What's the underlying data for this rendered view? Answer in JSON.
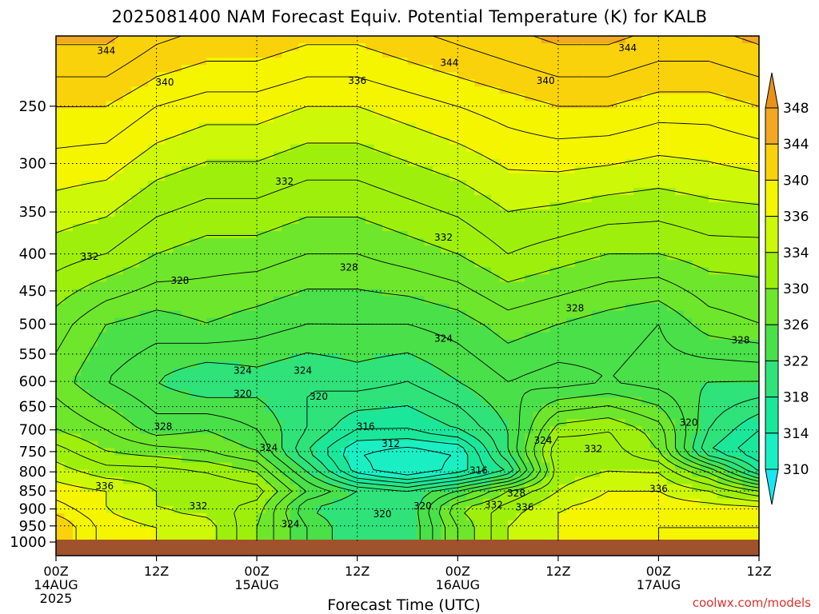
{
  "title": "2025081400 NAM Forecast Equiv. Potential Temperature (K) for KALB",
  "credit": "coolwx.com/models",
  "colors": {
    "ground": "#a0522d",
    "contour": "#000000",
    "grid": "#000000"
  },
  "chart_data": {
    "type": "heatmap",
    "title": "2025081400 NAM Forecast Equiv. Potential Temperature (K) for KALB",
    "xlabel": "Forecast Time (UTC)",
    "ylabel": "",
    "x_ticks": [
      {
        "hour": 0,
        "label": "00Z",
        "sub": "14AUG",
        "sub2": "2025"
      },
      {
        "hour": 12,
        "label": "12Z"
      },
      {
        "hour": 24,
        "label": "00Z",
        "sub": "15AUG"
      },
      {
        "hour": 36,
        "label": "12Z"
      },
      {
        "hour": 48,
        "label": "00Z",
        "sub": "16AUG"
      },
      {
        "hour": 60,
        "label": "12Z"
      },
      {
        "hour": 72,
        "label": "00Z",
        "sub": "17AUG"
      },
      {
        "hour": 84,
        "label": "12Z"
      }
    ],
    "xlim": [
      0,
      84
    ],
    "y_ticks": [
      250,
      300,
      350,
      400,
      450,
      500,
      550,
      600,
      650,
      700,
      750,
      800,
      850,
      900,
      950,
      1000
    ],
    "ylim": [
      200,
      1000
    ],
    "y_scale": "log",
    "grid": true,
    "colorbar": {
      "levels": [
        310,
        314,
        318,
        322,
        326,
        330,
        334,
        336,
        340,
        344,
        348
      ],
      "colors": [
        "#19e6f0",
        "#1aefc4",
        "#1be79a",
        "#2fe27a",
        "#4ae04a",
        "#6ee62c",
        "#9ef00c",
        "#cdf808",
        "#f5f500",
        "#f9d20b",
        "#f2a822",
        "#e89218"
      ]
    },
    "series": [
      {
        "name": "",
        "hours": [
          0,
          6,
          12,
          18,
          24,
          30,
          36,
          42,
          48,
          54,
          60,
          66,
          72,
          78,
          84
        ],
        "levels": [
          250,
          400,
          500,
          600,
          700,
          750,
          800,
          850,
          900,
          950
        ],
        "theta_e": [
          [
            340,
            340,
            338,
            337,
            337,
            336,
            336,
            337,
            338,
            339,
            340,
            340,
            339,
            339,
            340
          ],
          [
            333,
            332,
            330,
            329,
            329,
            328,
            328,
            329,
            330,
            332,
            331,
            330,
            330,
            331,
            331
          ],
          [
            329,
            326,
            325,
            326,
            325,
            324,
            324,
            324,
            325,
            327,
            326,
            325,
            324,
            327,
            328
          ],
          [
            327,
            324,
            322,
            320,
            321,
            320,
            321,
            320,
            322,
            324,
            323,
            324,
            323,
            322,
            322
          ],
          [
            330,
            328,
            325,
            326,
            324,
            320,
            316,
            316,
            318,
            322,
            331,
            332,
            329,
            320,
            316
          ],
          [
            333,
            330,
            329,
            328,
            326,
            318,
            312,
            311,
            312,
            322,
            334,
            333,
            330,
            318,
            314
          ],
          [
            335,
            333,
            333,
            332,
            330,
            322,
            313,
            310,
            313,
            318,
            333,
            334,
            334,
            328,
            318
          ],
          [
            337,
            336,
            334,
            334,
            333,
            326,
            322,
            320,
            324,
            330,
            334,
            336,
            336,
            334,
            330
          ],
          [
            339,
            336,
            334,
            333,
            331,
            322,
            320,
            320,
            330,
            333,
            336,
            337,
            337,
            337,
            337
          ],
          [
            342,
            337,
            336,
            335,
            330,
            324,
            320,
            320,
            328,
            334,
            336,
            337,
            338,
            338,
            338
          ]
        ]
      }
    ],
    "contour_labels": [
      {
        "text": "344",
        "hour": 6.0,
        "p": 210
      },
      {
        "text": "344",
        "hour": 47.0,
        "p": 218
      },
      {
        "text": "344",
        "hour": 68.3,
        "p": 208
      },
      {
        "text": "340",
        "hour": 13.0,
        "p": 232
      },
      {
        "text": "336",
        "hour": 36.0,
        "p": 231
      },
      {
        "text": "340",
        "hour": 58.5,
        "p": 231
      },
      {
        "text": "332",
        "hour": 27.3,
        "p": 318
      },
      {
        "text": "332",
        "hour": 46.3,
        "p": 380
      },
      {
        "text": "332",
        "hour": 4.0,
        "p": 404
      },
      {
        "text": "328",
        "hour": 35.0,
        "p": 418
      },
      {
        "text": "328",
        "hour": 14.8,
        "p": 436
      },
      {
        "text": "328",
        "hour": 62.0,
        "p": 476
      },
      {
        "text": "328",
        "hour": 81.8,
        "p": 527
      },
      {
        "text": "324",
        "hour": 46.3,
        "p": 524
      },
      {
        "text": "324",
        "hour": 22.3,
        "p": 580
      },
      {
        "text": "324",
        "hour": 29.5,
        "p": 580
      },
      {
        "text": "320",
        "hour": 22.3,
        "p": 625
      },
      {
        "text": "320",
        "hour": 31.4,
        "p": 630
      },
      {
        "text": "328",
        "hour": 12.8,
        "p": 693
      },
      {
        "text": "316",
        "hour": 37.0,
        "p": 693
      },
      {
        "text": "320",
        "hour": 75.6,
        "p": 685
      },
      {
        "text": "324",
        "hour": 25.4,
        "p": 742
      },
      {
        "text": "324",
        "hour": 58.2,
        "p": 725
      },
      {
        "text": "312",
        "hour": 40.0,
        "p": 732
      },
      {
        "text": "332",
        "hour": 64.2,
        "p": 745
      },
      {
        "text": "316",
        "hour": 50.5,
        "p": 797
      },
      {
        "text": "336",
        "hour": 5.8,
        "p": 838
      },
      {
        "text": "336",
        "hour": 72.0,
        "p": 845
      },
      {
        "text": "328",
        "hour": 55.0,
        "p": 857
      },
      {
        "text": "332",
        "hour": 17.0,
        "p": 893
      },
      {
        "text": "320",
        "hour": 43.8,
        "p": 893
      },
      {
        "text": "332",
        "hour": 52.3,
        "p": 890
      },
      {
        "text": "336",
        "hour": 56.0,
        "p": 897
      },
      {
        "text": "320",
        "hour": 39.0,
        "p": 916
      },
      {
        "text": "324",
        "hour": 28.0,
        "p": 945
      }
    ]
  }
}
